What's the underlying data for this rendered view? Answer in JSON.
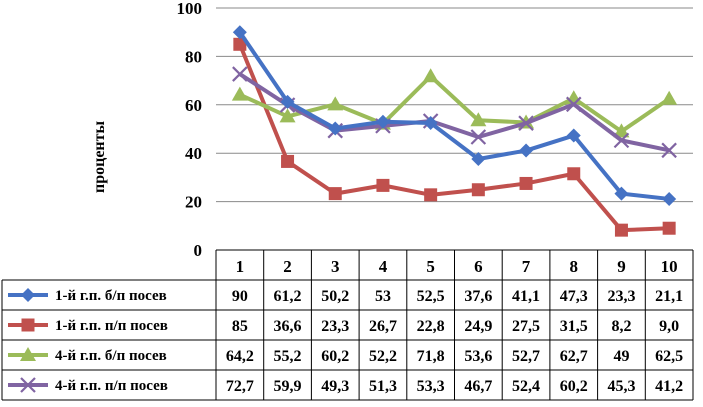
{
  "chart_data": {
    "type": "line",
    "ylabel": "проценты",
    "ylim": [
      0,
      100
    ],
    "yticks": [
      "0",
      "20",
      "40",
      "60",
      "80",
      "100"
    ],
    "categories": [
      "1",
      "2",
      "3",
      "4",
      "5",
      "6",
      "7",
      "8",
      "9",
      "10"
    ],
    "grid": true,
    "legend": "table-below",
    "series": [
      {
        "name": "1-й г.п. б/п посев",
        "color": "#4572C4",
        "marker": "diamond",
        "values": [
          90,
          61.2,
          50.2,
          53,
          52.5,
          37.6,
          41.1,
          47.3,
          23.3,
          21.1
        ],
        "labels": [
          "90",
          "61,2",
          "50,2",
          "53",
          "52,5",
          "37,6",
          "41,1",
          "47,3",
          "23,3",
          "21,1"
        ]
      },
      {
        "name": "1-й г.п. п/п посев",
        "color": "#C0504D",
        "marker": "square",
        "values": [
          85,
          36.6,
          23.3,
          26.7,
          22.8,
          24.9,
          27.5,
          31.5,
          8.2,
          9.0
        ],
        "labels": [
          "85",
          "36,6",
          "23,3",
          "26,7",
          "22,8",
          "24,9",
          "27,5",
          "31,5",
          "8,2",
          "9,0"
        ]
      },
      {
        "name": "4-й г.п. б/п посев",
        "color": "#9BBB59",
        "marker": "triangle",
        "values": [
          64.2,
          55.2,
          60.2,
          52.2,
          71.8,
          53.6,
          52.7,
          62.7,
          49,
          62.5
        ],
        "labels": [
          "64,2",
          "55,2",
          "60,2",
          "52,2",
          "71,8",
          "53,6",
          "52,7",
          "62,7",
          "49",
          "62,5"
        ]
      },
      {
        "name": "4-й г.п. п/п посев",
        "color": "#8064A2",
        "marker": "x",
        "values": [
          72.7,
          59.9,
          49.3,
          51.3,
          53.3,
          46.7,
          52.4,
          60.2,
          45.3,
          41.2
        ],
        "labels": [
          "72,7",
          "59,9",
          "49,3",
          "51,3",
          "53,3",
          "46,7",
          "52,4",
          "60,2",
          "45,3",
          "41,2"
        ]
      }
    ]
  }
}
